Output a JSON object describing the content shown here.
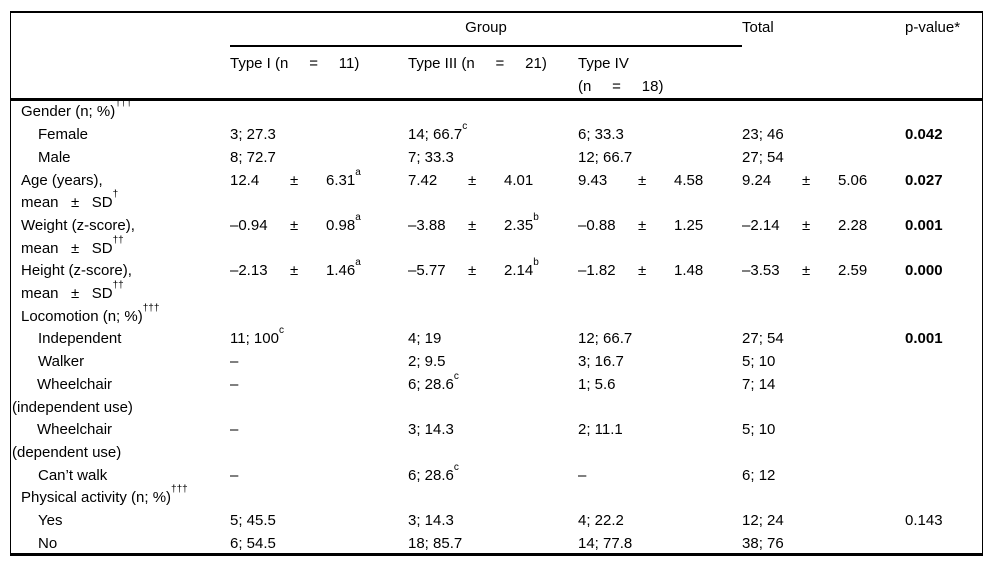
{
  "table": {
    "plus_minus": "±",
    "header": {
      "group_label": "Group",
      "total_label": "Total",
      "pvalue_label": "p-value*",
      "columns": [
        {
          "label": "Type I (n     =     11)"
        },
        {
          "label": "Type III (n     =     21)"
        },
        {
          "label": "Type IV\n(n     =     18)"
        }
      ]
    },
    "rows": [
      {
        "label": "Gender (n; %)",
        "sup": "†††",
        "indent": 0,
        "cells": [
          null,
          null,
          null,
          null
        ],
        "p": null
      },
      {
        "label": "Female",
        "sup": "",
        "indent": 1,
        "cells": [
          {
            "t": "3; 27.3"
          },
          {
            "t": "14; 66.7",
            "sup": "c"
          },
          {
            "t": "6; 33.3"
          },
          {
            "t": "23; 46"
          }
        ],
        "p": {
          "t": "0.042",
          "bold": true
        }
      },
      {
        "label": "Male",
        "sup": "",
        "indent": 1,
        "cells": [
          {
            "t": "8; 72.7"
          },
          {
            "t": "7; 33.3"
          },
          {
            "t": "12; 66.7"
          },
          {
            "t": "27; 54"
          }
        ],
        "p": null
      },
      {
        "label": "Age (years),\nmean   ±   SD",
        "sup": "†",
        "indent": 0,
        "cells": [
          {
            "m": "12.4",
            "s": "6.31",
            "sup": "a"
          },
          {
            "m": "7.42",
            "s": "4.01"
          },
          {
            "m": "9.43",
            "s": "4.58"
          },
          {
            "m": "9.24",
            "s": "5.06"
          }
        ],
        "p": {
          "t": "0.027",
          "bold": true
        }
      },
      {
        "label": "Weight (z-score),\nmean   ±   SD",
        "sup": "††",
        "indent": 0,
        "cells": [
          {
            "m": "–0.94",
            "s": "0.98",
            "sup": "a"
          },
          {
            "m": "–3.88",
            "s": "2.35",
            "sup": "b"
          },
          {
            "m": "–0.88",
            "s": "1.25"
          },
          {
            "m": "–2.14",
            "s": "2.28"
          }
        ],
        "p": {
          "t": "0.001",
          "bold": true
        }
      },
      {
        "label": "Height (z-score),\nmean   ±   SD",
        "sup": "††",
        "indent": 0,
        "cells": [
          {
            "m": "–2.13",
            "s": "1.46",
            "sup": "a"
          },
          {
            "m": "–5.77",
            "s": "2.14",
            "sup": "b"
          },
          {
            "m": "–1.82",
            "s": "1.48"
          },
          {
            "m": "–3.53",
            "s": "2.59"
          }
        ],
        "p": {
          "t": "0.000",
          "bold": true
        }
      },
      {
        "label": "Locomotion (n; %)",
        "sup": "†††",
        "indent": 0,
        "cells": [
          null,
          null,
          null,
          null
        ],
        "p": null
      },
      {
        "label": "Independent",
        "sup": "",
        "indent": 1,
        "cells": [
          {
            "t": "11; 100",
            "sup": "c"
          },
          {
            "t": "4; 19"
          },
          {
            "t": "12; 66.7"
          },
          {
            "t": "27; 54"
          }
        ],
        "p": {
          "t": "0.001",
          "bold": true
        }
      },
      {
        "label": "Walker",
        "sup": "",
        "indent": 1,
        "cells": [
          {
            "t": "–"
          },
          {
            "t": "2; 9.5"
          },
          {
            "t": "3; 16.7"
          },
          {
            "t": "5; 10"
          }
        ],
        "p": null
      },
      {
        "label": "Wheelchair\n(independent use)",
        "sup": "",
        "indent": 2,
        "cells": [
          {
            "t": "–"
          },
          {
            "t": "6; 28.6",
            "sup": "c"
          },
          {
            "t": "1; 5.6"
          },
          {
            "t": "7; 14"
          }
        ],
        "p": null
      },
      {
        "label": "Wheelchair\n(dependent use)",
        "sup": "",
        "indent": 2,
        "cells": [
          {
            "t": "–"
          },
          {
            "t": "3; 14.3"
          },
          {
            "t": "2; 11.1"
          },
          {
            "t": "5; 10"
          }
        ],
        "p": null
      },
      {
        "label": "Can’t walk",
        "sup": "",
        "indent": 1,
        "cells": [
          {
            "t": "–"
          },
          {
            "t": "6; 28.6",
            "sup": "c"
          },
          {
            "t": "–"
          },
          {
            "t": "6; 12"
          }
        ],
        "p": null
      },
      {
        "label": "Physical activity (n; %)",
        "sup": "†††",
        "indent": 0,
        "cells": [
          null,
          null,
          null,
          null
        ],
        "p": null
      },
      {
        "label": "Yes",
        "sup": "",
        "indent": 1,
        "cells": [
          {
            "t": "5; 45.5"
          },
          {
            "t": "3; 14.3"
          },
          {
            "t": "4; 22.2"
          },
          {
            "t": "12; 24"
          }
        ],
        "p": {
          "t": "0.143",
          "bold": false
        }
      },
      {
        "label": "No",
        "sup": "",
        "indent": 1,
        "cells": [
          {
            "t": "6; 54.5"
          },
          {
            "t": "18; 85.7"
          },
          {
            "t": "14; 77.8"
          },
          {
            "t": "38; 76"
          }
        ],
        "p": null
      }
    ]
  }
}
